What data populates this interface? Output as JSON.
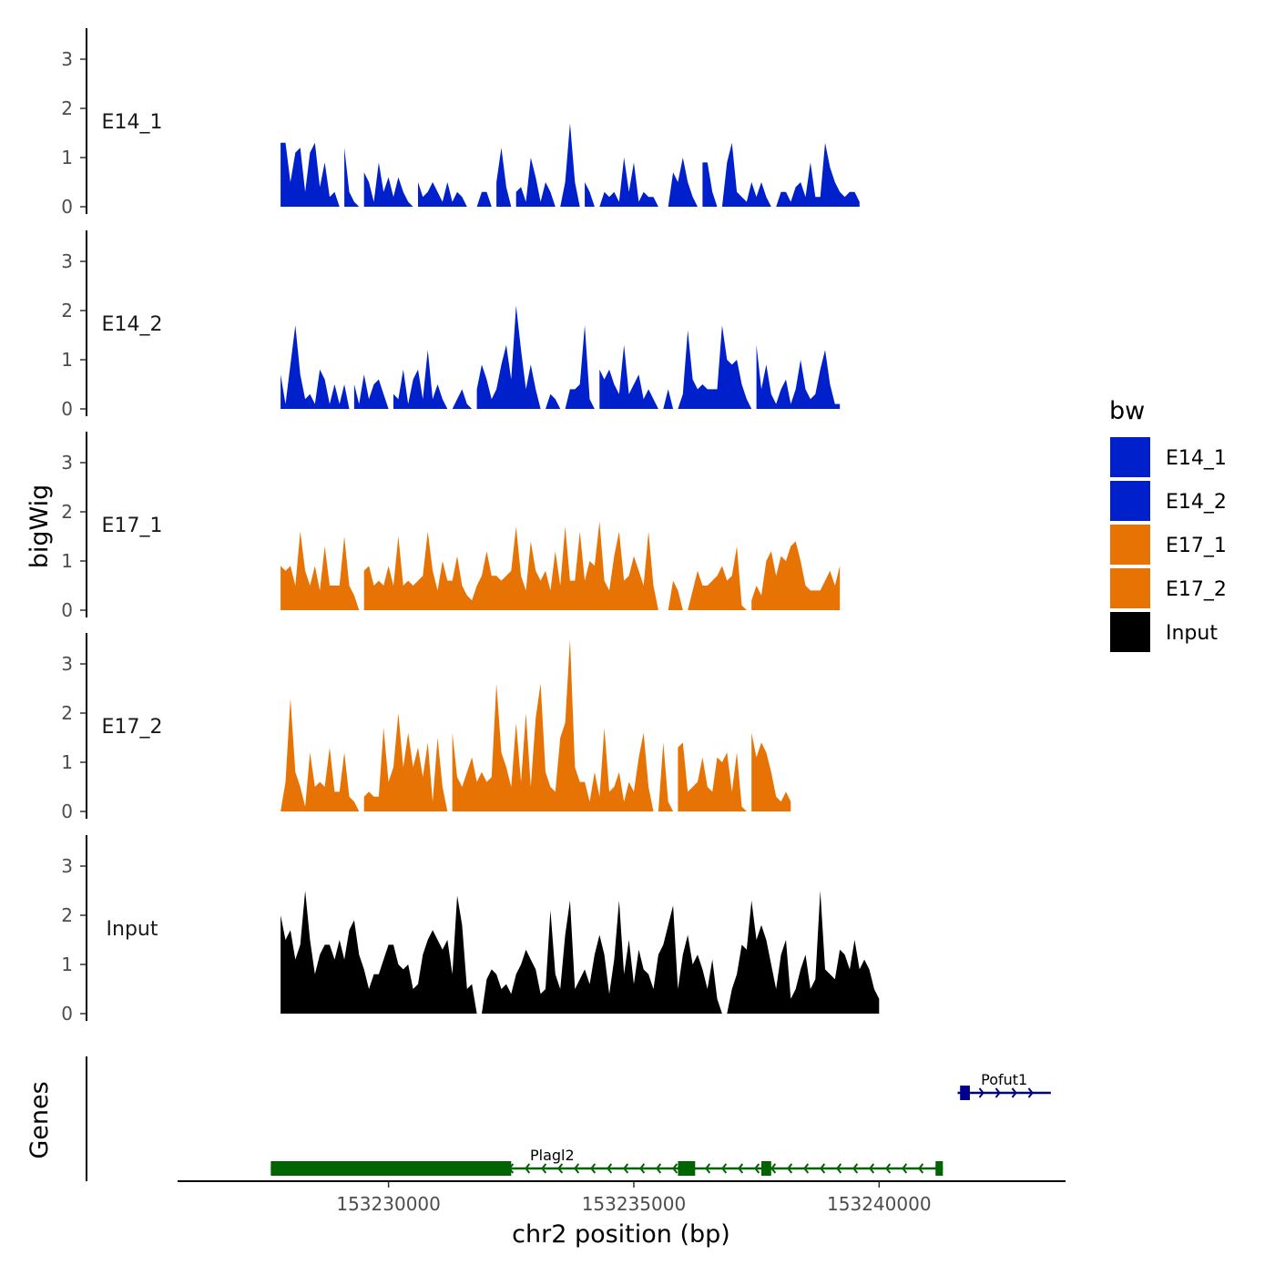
{
  "chart_data": {
    "type": "area",
    "ylabel": "bigWig",
    "genes_label": "Genes",
    "xlabel": "chr2 position (bp)",
    "xlim": [
      153225700,
      153243800
    ],
    "ylim": [
      0,
      3.6
    ],
    "y_ticks": [
      "0",
      "1",
      "2",
      "3"
    ],
    "x_ticks": [
      {
        "value": 153230000,
        "label": "153230000"
      },
      {
        "value": 153235000,
        "label": "153235000"
      },
      {
        "value": 153240000,
        "label": "153240000"
      }
    ],
    "legend": {
      "title": "bw",
      "entries": [
        {
          "label": "E14_1",
          "color": "#0020cc"
        },
        {
          "label": "E14_2",
          "color": "#0020cc"
        },
        {
          "label": "E17_1",
          "color": "#e87305"
        },
        {
          "label": "E17_2",
          "color": "#e87305"
        },
        {
          "label": "Input",
          "color": "#000000"
        }
      ]
    },
    "series": [
      {
        "name": "E14_1",
        "color": "#0020cc",
        "start": 153227800,
        "step": 100,
        "values": [
          1.3,
          1.3,
          0.5,
          1.1,
          1.2,
          0.3,
          1.1,
          1.3,
          0.4,
          0.9,
          0.2,
          0.3,
          0,
          1.2,
          0.3,
          0.1,
          0,
          0.7,
          0.5,
          0.1,
          0.9,
          0.3,
          0.6,
          0.2,
          0.6,
          0.3,
          0.1,
          0,
          0.5,
          0.2,
          0.3,
          0.5,
          0.3,
          0.1,
          0.5,
          0.1,
          0.3,
          0.2,
          0,
          0,
          0,
          0.3,
          0.3,
          0,
          0.5,
          1.2,
          0.4,
          0,
          0.3,
          0.4,
          0.1,
          1.0,
          0.6,
          0.1,
          0.5,
          0.3,
          0,
          0,
          0.5,
          1.7,
          0.5,
          0,
          0.5,
          0.3,
          0,
          0,
          0.3,
          0.2,
          0.3,
          0.1,
          1.0,
          0.3,
          0.9,
          0.1,
          0.3,
          0.2,
          0.2,
          0,
          0,
          0,
          0.7,
          0.5,
          1.0,
          0.5,
          0.2,
          0,
          0.9,
          0.9,
          0.3,
          0,
          0,
          0.9,
          1.3,
          0.3,
          0.2,
          0.1,
          0.5,
          0.2,
          0.5,
          0.2,
          0,
          0,
          0.3,
          0.3,
          0.1,
          0.4,
          0.5,
          0.2,
          0.9,
          0.2,
          0.2,
          1.3,
          0.8,
          0.5,
          0.3,
          0.2,
          0.3,
          0.3,
          0.1
        ]
      },
      {
        "name": "E14_2",
        "color": "#0020cc",
        "start": 153227800,
        "step": 100,
        "values": [
          0.7,
          0.1,
          0.9,
          1.7,
          0.7,
          0.2,
          0.3,
          0.1,
          0.8,
          0.6,
          0.1,
          0.5,
          0.1,
          0.5,
          0,
          0.5,
          0.1,
          0.7,
          0.2,
          0.5,
          0.6,
          0.3,
          0,
          0.3,
          0.2,
          0.8,
          0.1,
          0.6,
          0.8,
          0.2,
          1.2,
          0.2,
          0.5,
          0.2,
          0,
          0,
          0.2,
          0.4,
          0.1,
          0,
          0.4,
          0.9,
          0.6,
          0.2,
          0.4,
          0.9,
          1.3,
          0.6,
          2.1,
          1.2,
          0.4,
          0.9,
          0.4,
          0,
          0,
          0.3,
          0.2,
          0,
          0,
          0.4,
          0.4,
          0.5,
          1.7,
          0.2,
          0,
          0.8,
          0.6,
          0.8,
          0.5,
          0.3,
          1.3,
          0.3,
          0.5,
          0.7,
          0.2,
          0.4,
          0.2,
          0,
          0,
          0.4,
          0,
          0,
          0.3,
          1.6,
          0.6,
          0.4,
          0.5,
          0.4,
          0.4,
          0.4,
          1.7,
          1.0,
          0.9,
          1.0,
          0.5,
          0.2,
          0,
          1.3,
          0.4,
          0.9,
          0.3,
          0.1,
          0.4,
          0.6,
          0.1,
          0.4,
          1.0,
          0.4,
          0.2,
          0.3,
          0.8,
          1.2,
          0.5,
          0.1,
          0.1
        ]
      },
      {
        "name": "E17_1",
        "color": "#e87305",
        "start": 153227800,
        "step": 100,
        "values": [
          0.9,
          0.8,
          0.9,
          0.5,
          1.6,
          0.8,
          0.5,
          0.9,
          0.4,
          1.3,
          0.5,
          0.5,
          0.5,
          1.5,
          0.5,
          0.3,
          0,
          0.8,
          0.9,
          0.5,
          0.6,
          0.5,
          0.9,
          0.5,
          1.5,
          0.5,
          0.6,
          0.5,
          0.6,
          0.7,
          1.6,
          0.8,
          0.4,
          1.0,
          0.6,
          0.6,
          1.1,
          0.5,
          0.3,
          0.2,
          0.5,
          0.7,
          1.2,
          0.7,
          0.7,
          0.6,
          0.7,
          0.8,
          1.7,
          0.7,
          0.4,
          1.4,
          0.8,
          0.6,
          0.8,
          0.4,
          1.2,
          0.5,
          1.7,
          0.6,
          0.6,
          1.6,
          0.6,
          1.0,
          0.9,
          1.8,
          0.6,
          0.4,
          1.1,
          1.6,
          0.6,
          0.7,
          1.1,
          0.8,
          0.5,
          1.6,
          0.5,
          0,
          0,
          0,
          0.6,
          0.4,
          0,
          0,
          0.4,
          0.8,
          0.5,
          0.5,
          0.6,
          0.7,
          0.9,
          0.6,
          0.7,
          1.3,
          0.1,
          0,
          0.2,
          0.5,
          0.3,
          1.0,
          1.2,
          0.7,
          1.1,
          1.0,
          1.3,
          1.4,
          1.0,
          0.5,
          0.4,
          0.4,
          0.4,
          0.6,
          0.8,
          0.5,
          0.9
        ]
      },
      {
        "name": "E17_2",
        "color": "#e87305",
        "start": 153227800,
        "step": 100,
        "values": [
          0,
          0.6,
          2.3,
          0.8,
          0.5,
          0.1,
          1.2,
          0.5,
          0.6,
          0.5,
          1.3,
          0.4,
          0.4,
          1.2,
          0.3,
          0.2,
          0,
          0.3,
          0.4,
          0.3,
          0.3,
          1.7,
          0.6,
          0.9,
          2.0,
          0.9,
          1.6,
          0.9,
          1.3,
          0.7,
          1.4,
          0.2,
          1.5,
          0.5,
          0,
          1.6,
          0.7,
          0.5,
          0.8,
          1.1,
          0.6,
          0.8,
          0.6,
          0.7,
          2.6,
          1.2,
          0.9,
          0.5,
          1.8,
          0.6,
          2.0,
          0.5,
          1.9,
          2.6,
          0.8,
          0.5,
          0.4,
          1.5,
          1.8,
          3.5,
          0.9,
          0.6,
          0.6,
          0.2,
          0.8,
          0.3,
          1.7,
          0.4,
          0.5,
          0.8,
          0.2,
          0.6,
          0.4,
          1.1,
          1.6,
          0.5,
          0,
          0,
          1.4,
          0.2,
          0,
          1.3,
          1.4,
          0.4,
          0.5,
          0.6,
          1.1,
          0.5,
          0.4,
          1.1,
          1.0,
          1.2,
          0.4,
          1.2,
          0.1,
          0,
          1.6,
          1.1,
          1.4,
          1.2,
          0.8,
          0.3,
          0.2,
          0.4,
          0.2
        ]
      },
      {
        "name": "Input",
        "color": "#000000",
        "start": 153227800,
        "step": 100,
        "values": [
          2.0,
          1.5,
          1.7,
          1.1,
          1.4,
          2.5,
          1.5,
          0.8,
          1.2,
          1.4,
          1.4,
          1.1,
          1.5,
          1.1,
          1.7,
          1.9,
          1.2,
          0.9,
          0.5,
          0.8,
          0.8,
          1.1,
          1.4,
          1.4,
          1.0,
          0.9,
          1.0,
          0.5,
          0.6,
          1.2,
          1.5,
          1.7,
          1.5,
          1.3,
          1.5,
          0.8,
          2.4,
          1.8,
          0.5,
          0.6,
          0,
          0,
          0.7,
          0.9,
          0.8,
          0.5,
          0.6,
          0.4,
          0.8,
          1.0,
          1.3,
          1.1,
          0.9,
          0.4,
          0.5,
          2.1,
          0.8,
          0.5,
          1.6,
          2.3,
          0.5,
          0.7,
          0.9,
          0.6,
          1.2,
          1.6,
          1.2,
          0.4,
          1.1,
          2.3,
          0.8,
          1.5,
          0.6,
          1.3,
          0.9,
          0.8,
          0.5,
          1.2,
          1.4,
          1.8,
          2.2,
          0.5,
          1.2,
          1.6,
          1.0,
          1.2,
          0.9,
          0.5,
          1.1,
          0.3,
          0,
          0,
          0.5,
          0.8,
          1.4,
          1.3,
          2.3,
          1.5,
          1.8,
          1.5,
          1.0,
          0.5,
          1.2,
          1.5,
          0.3,
          0.5,
          0.9,
          1.2,
          0.5,
          0.7,
          2.5,
          0.9,
          0.8,
          0.7,
          1.3,
          1.2,
          0.9,
          1.5,
          0.9,
          1.1,
          0.9,
          0.5,
          0.3
        ]
      }
    ],
    "genes": [
      {
        "name": "Pofut1",
        "color": "#00008b",
        "strand": "+",
        "start": 153241600,
        "end": 153243500,
        "row": 0,
        "exons": [
          [
            153241650,
            153241850
          ]
        ]
      },
      {
        "name": "Plagl2",
        "color": "#006400",
        "strand": "-",
        "start": 153227600,
        "end": 153241300,
        "row": 1,
        "exons": [
          [
            153227600,
            153232500
          ],
          [
            153235900,
            153236250
          ],
          [
            153237600,
            153237800
          ],
          [
            153241150,
            153241300
          ]
        ]
      }
    ]
  }
}
